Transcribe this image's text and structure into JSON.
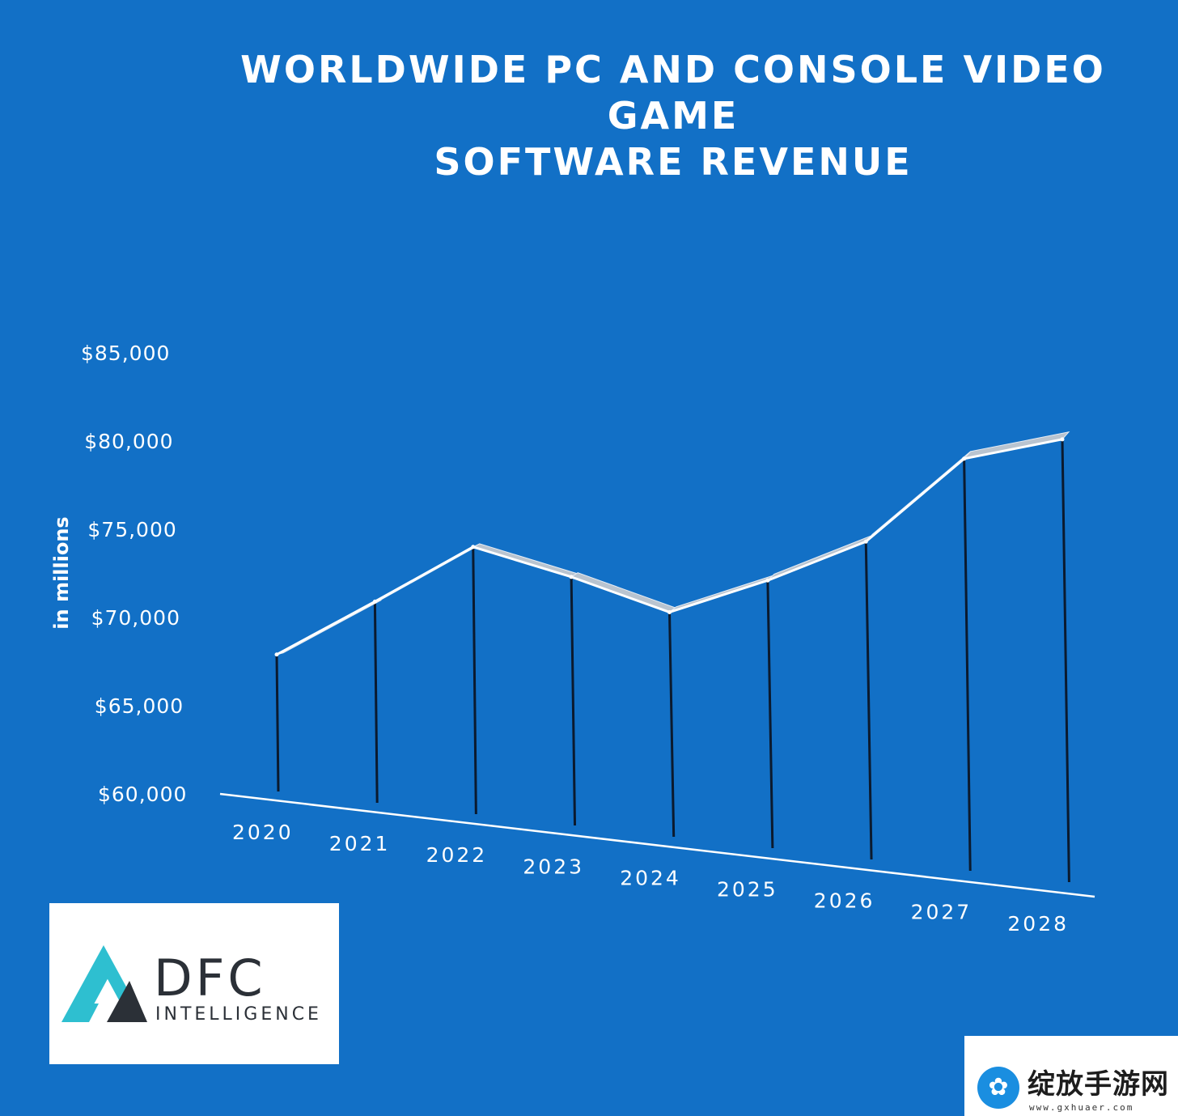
{
  "chart_data": {
    "type": "line",
    "title_lines": [
      "WORLDWIDE PC AND CONSOLE VIDEO",
      "GAME",
      "SOFTWARE REVENUE"
    ],
    "ylabel": "in millions",
    "xlabel": "",
    "categories": [
      "2020",
      "2021",
      "2022",
      "2023",
      "2024",
      "2025",
      "2026",
      "2027",
      "2028"
    ],
    "values": [
      67900,
      70900,
      74000,
      72300,
      70300,
      72100,
      74300,
      79000,
      80100
    ],
    "yticks": [
      60000,
      65000,
      70000,
      75000,
      80000,
      85000
    ],
    "ytick_labels": [
      "$60,000",
      "$65,000",
      "$70,000",
      "$75,000",
      "$80,000",
      "$85,000"
    ],
    "ylim": [
      60000,
      85000
    ],
    "grid": false,
    "legend": "none",
    "colors": {
      "background": "#1270c6",
      "line": "#ffffff",
      "ribbon": "#b9c4d0",
      "drop_lines": "#0b1a2e"
    }
  },
  "logo": {
    "name": "DFC",
    "subtitle": "INTELLIGENCE"
  },
  "watermark": {
    "name": "绽放手游网",
    "url": "www.gxhuaer.com",
    "icon": "octopus-icon"
  }
}
